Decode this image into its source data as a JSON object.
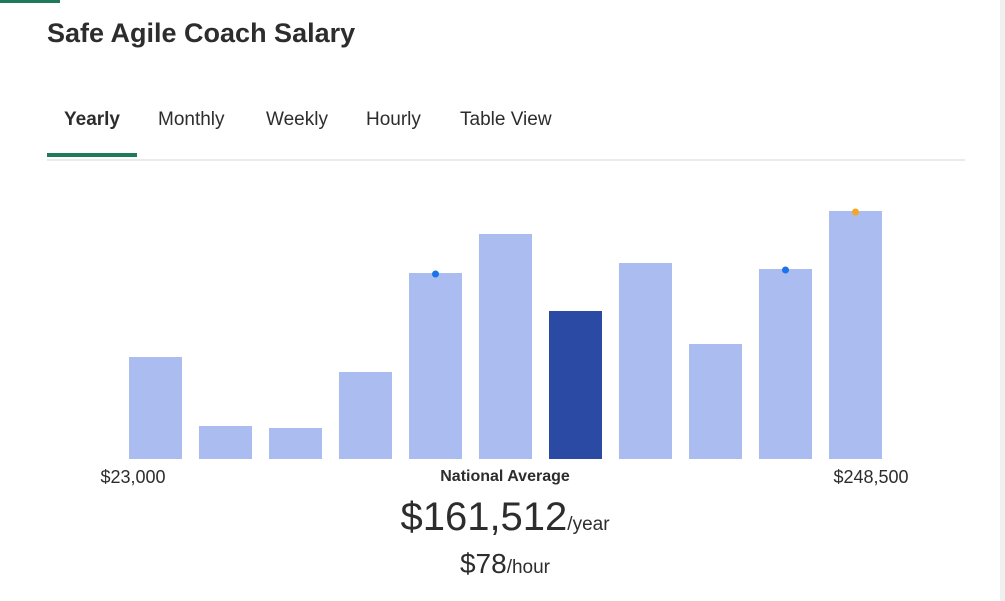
{
  "header": {
    "title": "Safe Agile Coach Salary"
  },
  "tabs": {
    "items": [
      "Yearly",
      "Monthly",
      "Weekly",
      "Hourly",
      "Table View"
    ],
    "active": 0
  },
  "chart_data": {
    "type": "bar",
    "values": [
      102,
      33,
      31,
      87,
      186,
      225,
      148,
      196,
      115,
      190,
      248
    ],
    "colors": [
      "#abbcf0",
      "#abbcf0",
      "#abbcf0",
      "#abbcf0",
      "#abbcf0",
      "#abbcf0",
      "#2a4aa3",
      "#abbcf0",
      "#abbcf0",
      "#abbcf0",
      "#abbcf0"
    ],
    "markers": [
      {
        "bar": 4,
        "color": "#1a73e8"
      },
      {
        "bar": 9,
        "color": "#1a73e8"
      },
      {
        "bar": 10,
        "color": "#f5a623"
      }
    ],
    "ylim": [
      0,
      248
    ],
    "min_label": "$23,000",
    "max_label": "$248,500"
  },
  "summary": {
    "caption": "National Average",
    "amount": "$161,512",
    "amount_unit": "/year",
    "hourly": "$78",
    "hourly_unit": "/hour"
  }
}
